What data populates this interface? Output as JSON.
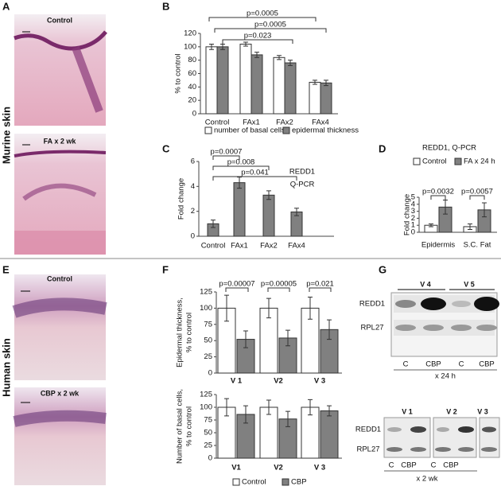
{
  "panels": [
    "A",
    "B",
    "C",
    "D",
    "E",
    "F",
    "G"
  ],
  "row_labels": [
    "Murine skin",
    "Human  skin"
  ],
  "histology": {
    "murine": [
      "Control",
      "FA x 2 wk"
    ],
    "human": [
      "Control",
      "CBP x 2 wk"
    ]
  },
  "blots": {
    "top": {
      "groups": [
        "V 4",
        "V 5"
      ],
      "rows": [
        "REDD1",
        "RPL27"
      ],
      "lanes": [
        "C",
        "CBP",
        "C",
        "CBP"
      ],
      "treatment": "x 24 h"
    },
    "bottom": {
      "groups": [
        "V 1",
        "V 2",
        "V 3"
      ],
      "rows": [
        "REDD1",
        "RPL27"
      ],
      "lanes": [
        "C",
        "CBP",
        "C",
        "CBP"
      ],
      "treatment": "x 2 wk"
    }
  },
  "chart_data": [
    {
      "type": "bar",
      "categories": [
        "Control",
        "FAx1",
        "FAx2",
        "FAx4"
      ],
      "ylabel": [
        "% to control"
      ],
      "ylim": [
        0,
        120
      ],
      "yticks": [
        0,
        20,
        40,
        60,
        80,
        100,
        120
      ],
      "series": [
        {
          "name": "number of basal cells",
          "color": "#ffffff",
          "values": [
            100,
            104,
            84,
            47
          ],
          "errors": [
            4,
            3,
            3,
            3
          ]
        },
        {
          "name": "epidermal thickness",
          "color": "#808080",
          "values": [
            100,
            88,
            76,
            46
          ],
          "errors": [
            4,
            4,
            4,
            4
          ]
        }
      ],
      "annotations": [
        "p=0.0005",
        "p=0.0005",
        "p=0.023"
      ]
    },
    {
      "type": "bar",
      "categories": [
        "Control",
        "FAx1",
        "FAx2",
        "FAx4"
      ],
      "ylabel": [
        "Fold change"
      ],
      "label": [
        "REDD1",
        "Q-PCR"
      ],
      "ylim": [
        0,
        6
      ],
      "yticks": [
        0,
        2,
        4,
        6
      ],
      "values": [
        1,
        4.3,
        3.3,
        1.95
      ],
      "errors": [
        0.3,
        0.45,
        0.35,
        0.3
      ],
      "color": "#808080",
      "annotations": [
        "p=0.0007",
        "p=0.008",
        "p=0.041"
      ]
    },
    {
      "type": "bar",
      "title": "REDD1, Q-PCR",
      "categories": [
        "Epidermis",
        "S.C. Fat"
      ],
      "ylabel": [
        "Fold change"
      ],
      "ylim": [
        0,
        5
      ],
      "yticks": [
        0,
        1,
        2,
        3,
        4,
        5
      ],
      "series": [
        {
          "name": "Control",
          "color": "#ffffff",
          "values": [
            1,
            0.8
          ],
          "errors": [
            0.2,
            0.4
          ]
        },
        {
          "name": "FA x 24 h",
          "color": "#808080",
          "values": [
            3.6,
            3.2
          ],
          "errors": [
            1,
            1
          ]
        }
      ],
      "annotations": [
        "p=0.0032",
        "p=0.0057"
      ]
    },
    {
      "type": "bar",
      "categories": [
        "V 1",
        "V2",
        "V 3"
      ],
      "ylabel": [
        "Epidermal thickness,",
        "% to control"
      ],
      "ylim": [
        0,
        125
      ],
      "yticks": [
        0,
        25,
        50,
        75,
        100,
        125
      ],
      "series": [
        {
          "color": "#ffffff",
          "values": [
            100,
            100,
            100
          ],
          "errors": [
            20,
            15,
            17
          ]
        },
        {
          "color": "#808080",
          "values": [
            52,
            54,
            67
          ],
          "errors": [
            13,
            12,
            15
          ]
        }
      ],
      "annotations": [
        "p=0.00007",
        "p=0.00005",
        "p=0.021"
      ]
    },
    {
      "type": "bar",
      "categories": [
        "V1",
        "V2",
        "V 3"
      ],
      "ylabel": [
        "Number of basal cells,",
        "% to control"
      ],
      "ylim": [
        0,
        125
      ],
      "yticks": [
        0,
        25,
        50,
        75,
        100,
        125
      ],
      "series": [
        {
          "name": "Control",
          "color": "#ffffff",
          "values": [
            100,
            100,
            100
          ],
          "errors": [
            17,
            14,
            15
          ]
        },
        {
          "name": "CBP",
          "color": "#808080",
          "values": [
            86,
            77,
            93
          ],
          "errors": [
            17,
            15,
            10
          ]
        }
      ]
    }
  ]
}
